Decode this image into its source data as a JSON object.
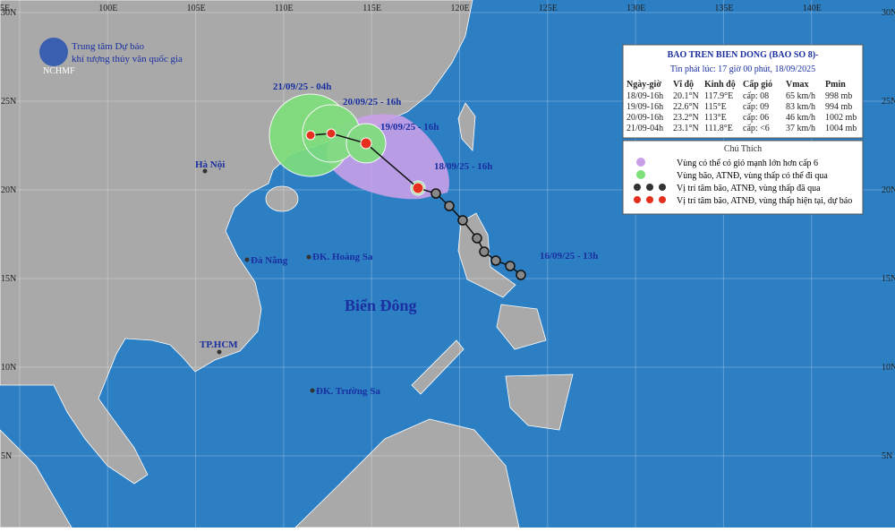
{
  "map": {
    "lon_labels": [
      "5E",
      "100E",
      "105E",
      "110E",
      "115E",
      "120E",
      "125E",
      "130E",
      "135E",
      "140E"
    ],
    "lat_labels": [
      "30N",
      "25N",
      "20N",
      "15N",
      "10N",
      "5N"
    ],
    "agency": [
      "Trung tâm Dự báo",
      "khí tượng thủy văn quốc gia"
    ],
    "logo": "NCHMF",
    "places": [
      "Hà Nội",
      "Đà Nẵng",
      "ĐK. Hoàng Sa",
      "Biển Đông",
      "TP.HCM",
      "ĐK. Trường Sa"
    ],
    "track_labels": [
      "21/09/25 - 04h",
      "20/09/25 - 16h",
      "19/09/25 - 16h",
      "18/09/25 - 16h",
      "16/09/25 - 13h"
    ]
  },
  "info": {
    "title": "BAO TREN BIEN DONG (BAO SO 8)-",
    "subtitle": "Tin phát lúc: 17 giờ 00 phút, 18/09/2025",
    "table": {
      "header": [
        "Ngày-giờ",
        "Vĩ độ",
        "Kinh độ",
        "Cấp gió",
        "Vmax",
        "Pmin"
      ],
      "rows": [
        [
          "18/09-16h",
          "20.1°N",
          "117.9°E",
          "cấp: 08",
          "65 km/h",
          "998 mb"
        ],
        [
          "19/09-16h",
          "22.6°N",
          "115°E",
          "cấp: 09",
          "83 km/h",
          "994 mb"
        ],
        [
          "20/09-16h",
          "23.2°N",
          "113°E",
          "cấp: 06",
          "46 km/h",
          "1002 mb"
        ],
        [
          "21/09-04h",
          "23.1°N",
          "111.8°E",
          "cấp: <6",
          "37 km/h",
          "1004 mb"
        ]
      ]
    },
    "legend_title": "Chú Thích",
    "legend": [
      "Vùng có thể có gió mạnh lớn hơn cấp 6",
      "Vùng bão, ATNĐ, vùng thấp có thể đi qua",
      "Vị trí tâm bão, ATNĐ, vùng thấp đã qua",
      "Vị trí tâm bão, ATNĐ, vùng thấp hiện tại, dự báo"
    ]
  }
}
